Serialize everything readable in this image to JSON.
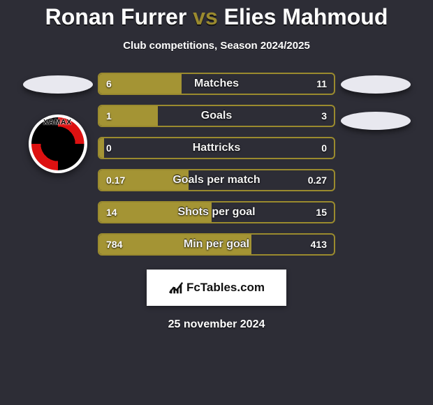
{
  "title": {
    "player1": "Ronan Furrer",
    "vs": "vs",
    "player2": "Elies Mahmoud"
  },
  "subtitle": "Club competitions, Season 2024/2025",
  "date": "25 november 2024",
  "footer": "FcTables.com",
  "badge_text": "XAMAX",
  "colors": {
    "background": "#2d2d36",
    "accent": "#9a8a2e",
    "bar_border": "#9a8a2e",
    "bar_fill": "#a49434",
    "text": "#ffffff"
  },
  "bars": [
    {
      "label": "Matches",
      "left": "6",
      "right": "11",
      "fill_pct": 35
    },
    {
      "label": "Goals",
      "left": "1",
      "right": "3",
      "fill_pct": 25
    },
    {
      "label": "Hattricks",
      "left": "0",
      "right": "0",
      "fill_pct": 2
    },
    {
      "label": "Goals per match",
      "left": "0.17",
      "right": "0.27",
      "fill_pct": 38
    },
    {
      "label": "Shots per goal",
      "left": "14",
      "right": "15",
      "fill_pct": 48
    },
    {
      "label": "Min per goal",
      "left": "784",
      "right": "413",
      "fill_pct": 65
    }
  ]
}
